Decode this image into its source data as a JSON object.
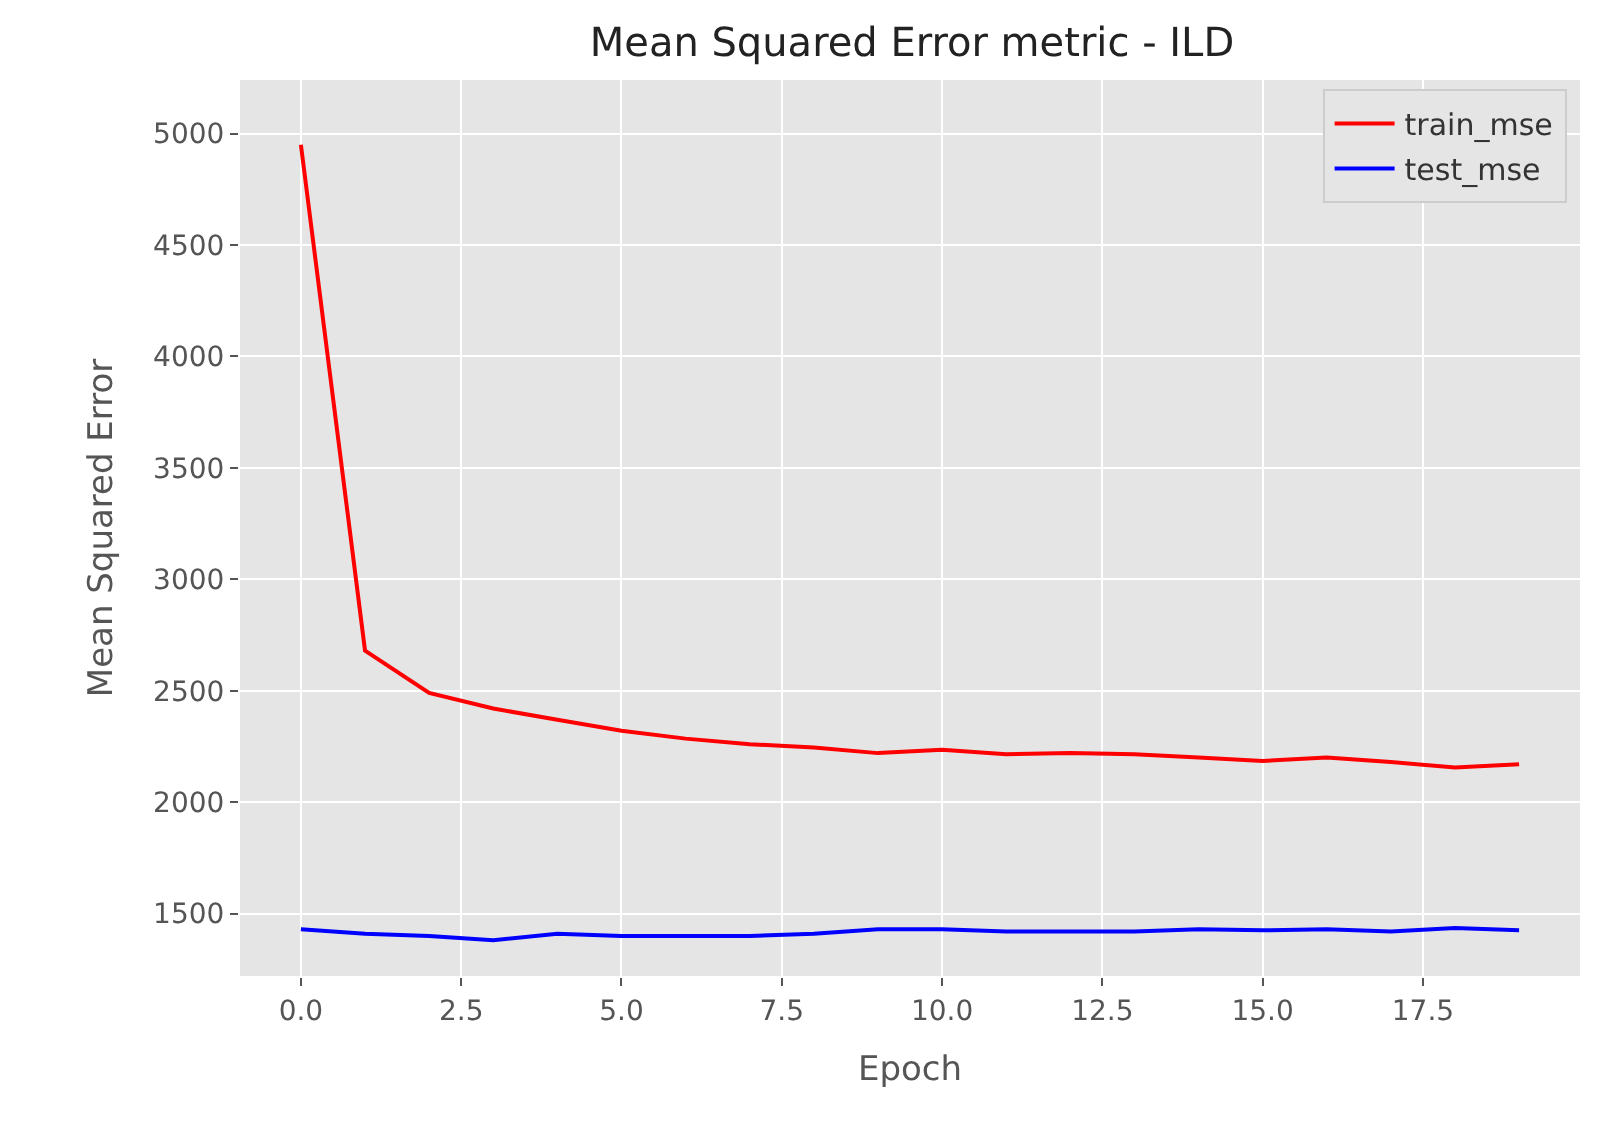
{
  "chart_data": {
    "type": "line",
    "title": "Mean Squared Error metric - ILD",
    "xlabel": "Epoch",
    "ylabel": "Mean Squared Error",
    "x": [
      0,
      1,
      2,
      3,
      4,
      5,
      6,
      7,
      8,
      9,
      10,
      11,
      12,
      13,
      14,
      15,
      16,
      17,
      18,
      19
    ],
    "series": [
      {
        "name": "train_mse",
        "color": "#ff0000",
        "values": [
          4950,
          2680,
          2490,
          2420,
          2370,
          2320,
          2285,
          2260,
          2245,
          2220,
          2235,
          2215,
          2220,
          2215,
          2200,
          2185,
          2200,
          2180,
          2155,
          2170
        ]
      },
      {
        "name": "test_mse",
        "color": "#0000ff",
        "values": [
          1430,
          1410,
          1400,
          1380,
          1410,
          1400,
          1400,
          1400,
          1410,
          1430,
          1430,
          1420,
          1420,
          1420,
          1430,
          1425,
          1430,
          1420,
          1435,
          1425
        ]
      }
    ],
    "xlim": [
      -0.95,
      19.95
    ],
    "ylim": [
      1220,
      5240
    ],
    "xticks": [
      {
        "value": 0,
        "label": "0.0"
      },
      {
        "value": 2.5,
        "label": "2.5"
      },
      {
        "value": 5,
        "label": "5.0"
      },
      {
        "value": 7.5,
        "label": "7.5"
      },
      {
        "value": 10,
        "label": "10.0"
      },
      {
        "value": 12.5,
        "label": "12.5"
      },
      {
        "value": 15,
        "label": "15.0"
      },
      {
        "value": 17.5,
        "label": "17.5"
      }
    ],
    "yticks": [
      1500,
      2000,
      2500,
      3000,
      3500,
      4000,
      4500,
      5000
    ],
    "grid": true,
    "legend": "top right",
    "marker": "none",
    "line_style": "solid"
  }
}
